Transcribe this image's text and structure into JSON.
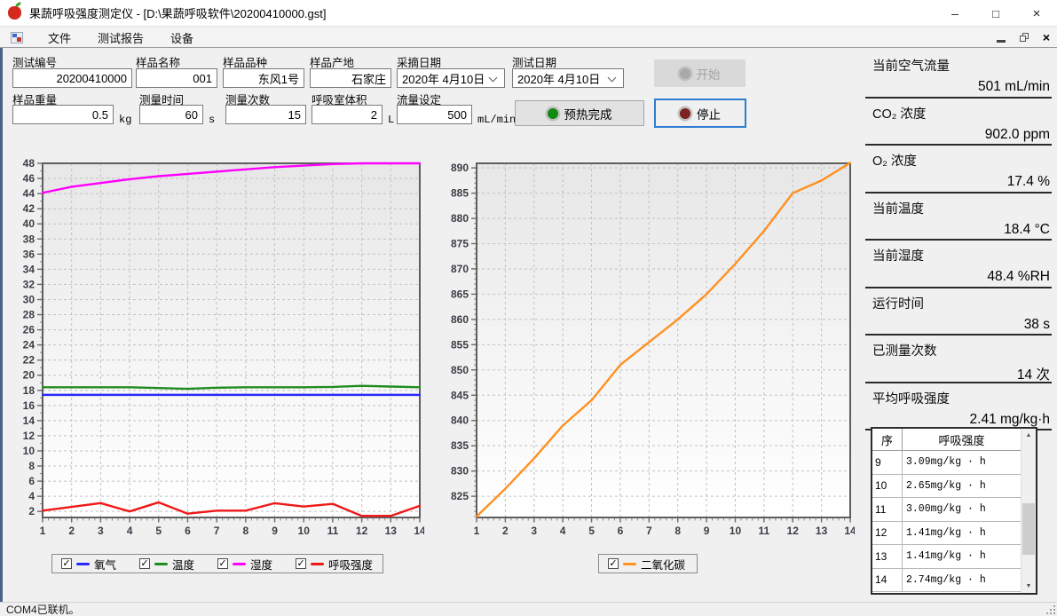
{
  "window": {
    "title": "果蔬呼吸强度测定仪 - [D:\\果蔬呼吸软件\\20200410000.gst]"
  },
  "icons": {
    "minimize": "–",
    "maximize": "□",
    "close": "×",
    "mdi_close": "×",
    "scroll_up": "▲",
    "scroll_down": "▼",
    "check": "✓"
  },
  "menu": {
    "items": [
      {
        "label": "文件"
      },
      {
        "label": "测试报告"
      },
      {
        "label": "设备"
      }
    ]
  },
  "form": {
    "fields": {
      "test_id": {
        "label": "测试编号",
        "value": "20200410000"
      },
      "sample_name": {
        "label": "样品名称",
        "value": "001"
      },
      "sample_variety": {
        "label": "样品品种",
        "value": "东风1号"
      },
      "sample_origin": {
        "label": "样品产地",
        "value": "石家庄"
      },
      "pick_date": {
        "label": "采摘日期",
        "value": "2020年 4月10日"
      },
      "test_date": {
        "label": "测试日期",
        "value": "2020年 4月10日"
      },
      "sample_weight": {
        "label": "样品重量",
        "value": "0.5",
        "unit": "kg"
      },
      "measure_time": {
        "label": "测量时间",
        "value": "60",
        "unit": "s"
      },
      "measure_count": {
        "label": "测量次数",
        "value": "15",
        "unit": ""
      },
      "chamber_volume": {
        "label": "呼吸室体积",
        "value": "2",
        "unit": "L"
      },
      "flow_setting": {
        "label": "流量设定",
        "value": "500",
        "unit": "mL/min"
      }
    },
    "buttons": {
      "start": "开始",
      "preheat": "预热完成",
      "stop": "停止"
    }
  },
  "stats": [
    {
      "label": "当前空气流量",
      "value": "501",
      "unit": "mL/min"
    },
    {
      "label": "CO₂ 浓度",
      "value": "902.0",
      "unit": "ppm"
    },
    {
      "label": "O₂ 浓度",
      "value": "17.4",
      "unit": "%"
    },
    {
      "label": "当前温度",
      "value": "18.4",
      "unit": "°C"
    },
    {
      "label": "当前湿度",
      "value": "48.4",
      "unit": "%RH"
    },
    {
      "label": "运行时间",
      "value": "38",
      "unit": "s"
    },
    {
      "label": "已测量次数",
      "value": "14",
      "unit": "次"
    },
    {
      "label": "平均呼吸强度",
      "value": "2.41",
      "unit": "mg/kg·h"
    }
  ],
  "table": {
    "headers": [
      "序",
      "呼吸强度"
    ],
    "rows": [
      [
        "9",
        "3.09mg/kg · h"
      ],
      [
        "10",
        "2.65mg/kg · h"
      ],
      [
        "11",
        "3.00mg/kg · h"
      ],
      [
        "12",
        "1.41mg/kg · h"
      ],
      [
        "13",
        "1.41mg/kg · h"
      ],
      [
        "14",
        "2.74mg/kg · h"
      ]
    ]
  },
  "statusbar": {
    "text": "COM4已联机。"
  },
  "chart_data": [
    {
      "type": "line",
      "title": "",
      "x": [
        1,
        2,
        3,
        4,
        5,
        6,
        7,
        8,
        9,
        10,
        11,
        12,
        13,
        14
      ],
      "xticks": [
        1,
        2,
        3,
        4,
        5,
        6,
        7,
        8,
        9,
        10,
        11,
        12,
        13,
        14
      ],
      "ylim": [
        1.2,
        48.0
      ],
      "yticks": [
        2,
        4,
        6,
        8,
        10,
        12,
        14,
        16,
        18,
        20,
        22,
        24,
        26,
        28,
        30,
        32,
        34,
        36,
        38,
        40,
        42,
        44,
        46,
        48
      ],
      "grid": true,
      "legend_position": "bottom",
      "series": [
        {
          "name": "氧气",
          "color": "#2929ff",
          "values": [
            17.4,
            17.4,
            17.4,
            17.4,
            17.4,
            17.4,
            17.4,
            17.4,
            17.4,
            17.4,
            17.4,
            17.4,
            17.4,
            17.4
          ]
        },
        {
          "name": "温度",
          "color": "#1f8c1f",
          "values": [
            18.4,
            18.4,
            18.4,
            18.4,
            18.3,
            18.2,
            18.35,
            18.4,
            18.4,
            18.4,
            18.45,
            18.6,
            18.5,
            18.4
          ]
        },
        {
          "name": "湿度",
          "color": "#ff00ff",
          "values": [
            44.1,
            44.9,
            45.4,
            45.9,
            46.3,
            46.6,
            46.9,
            47.2,
            47.5,
            47.7,
            47.9,
            48.0,
            48.0,
            48.0
          ]
        },
        {
          "name": "呼吸强度",
          "color": "#f01818",
          "values": [
            2.1,
            2.6,
            3.1,
            2.0,
            3.2,
            1.7,
            2.1,
            2.1,
            3.09,
            2.65,
            3.0,
            1.41,
            1.41,
            2.74
          ]
        }
      ]
    },
    {
      "type": "line",
      "title": "",
      "x": [
        1,
        2,
        3,
        4,
        5,
        6,
        7,
        8,
        9,
        10,
        11,
        12,
        13,
        14
      ],
      "xticks": [
        1,
        2,
        3,
        4,
        5,
        6,
        7,
        8,
        9,
        10,
        11,
        12,
        13,
        14
      ],
      "ylim": [
        820.8,
        890.9
      ],
      "yticks": [
        825,
        830,
        835,
        840,
        845,
        850,
        855,
        860,
        865,
        870,
        875,
        880,
        885,
        890
      ],
      "grid": true,
      "legend_position": "bottom",
      "series": [
        {
          "name": "二氧化碳",
          "color": "#ff9021",
          "values": [
            821,
            826.5,
            832.5,
            839,
            844,
            851,
            855.5,
            860,
            865,
            871,
            877.5,
            885,
            887.5,
            891
          ]
        }
      ]
    }
  ]
}
